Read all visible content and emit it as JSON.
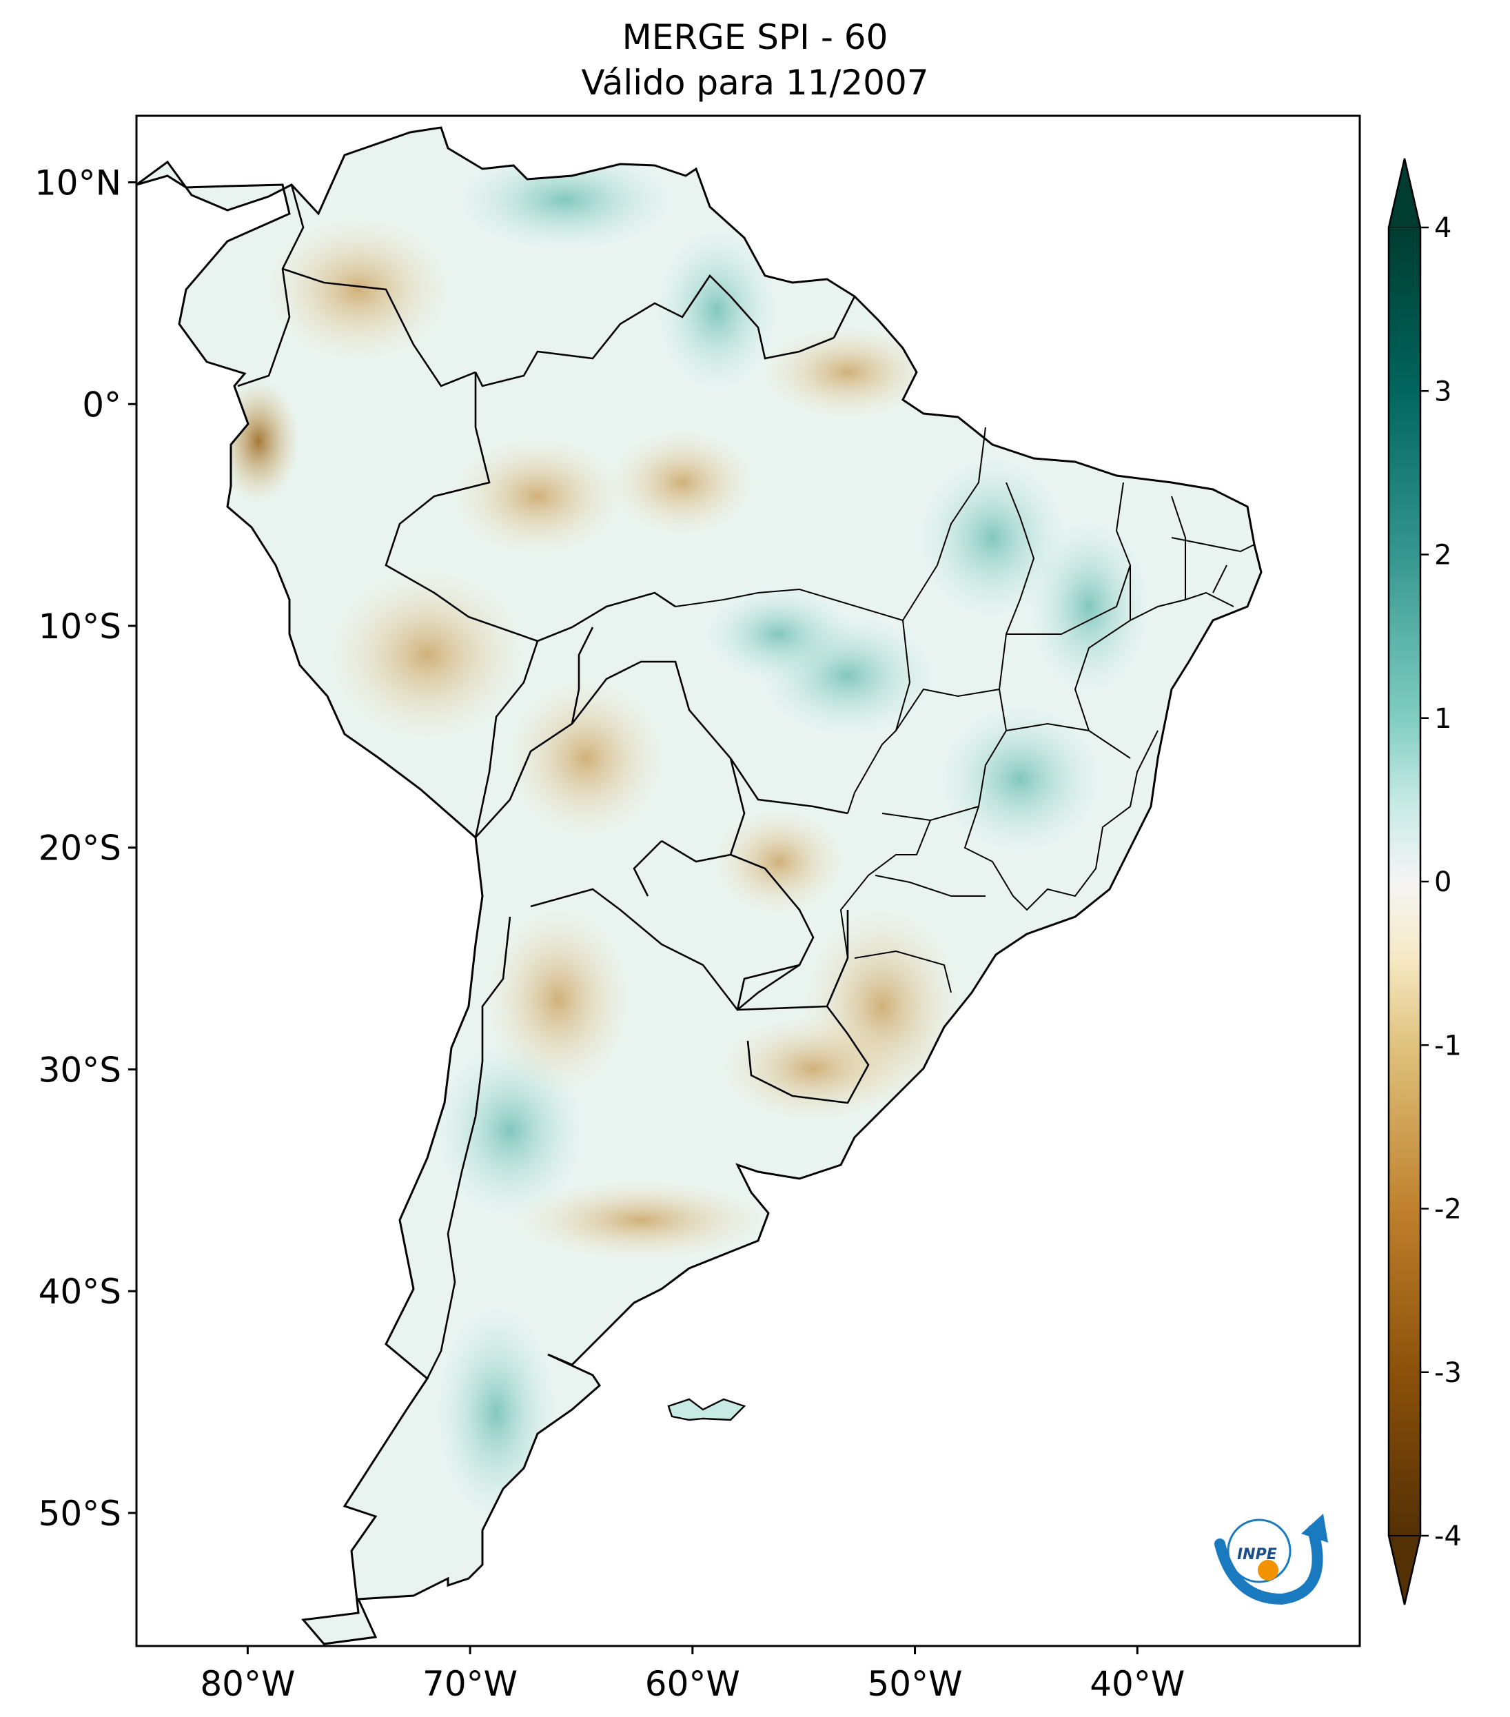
{
  "title": {
    "line1": "MERGE   SPI - 60",
    "line2": "Válido para 11/2007"
  },
  "map": {
    "lon_range": [
      -85,
      -30
    ],
    "lat_range": [
      -56,
      13
    ],
    "lat_ticks": [
      {
        "value": 10,
        "label": "10°N"
      },
      {
        "value": 0,
        "label": "0°"
      },
      {
        "value": -10,
        "label": "10°S"
      },
      {
        "value": -20,
        "label": "20°S"
      },
      {
        "value": -30,
        "label": "30°S"
      },
      {
        "value": -40,
        "label": "40°S"
      },
      {
        "value": -50,
        "label": "50°S"
      }
    ],
    "lon_ticks": [
      {
        "value": -80,
        "label": "80°W"
      },
      {
        "value": -70,
        "label": "70°W"
      },
      {
        "value": -60,
        "label": "60°W"
      },
      {
        "value": -50,
        "label": "50°W"
      },
      {
        "value": -40,
        "label": "40°W"
      }
    ]
  },
  "colorbar": {
    "min": -4,
    "max": 4,
    "extend": "both",
    "colormap": "BrBG",
    "ticks": [
      {
        "value": 4,
        "label": "4"
      },
      {
        "value": 3,
        "label": "3"
      },
      {
        "value": 2,
        "label": "2"
      },
      {
        "value": 1,
        "label": "1"
      },
      {
        "value": 0,
        "label": "0"
      },
      {
        "value": -1,
        "label": "-1"
      },
      {
        "value": -2,
        "label": "-2"
      },
      {
        "value": -3,
        "label": "-3"
      },
      {
        "value": -4,
        "label": "-4"
      }
    ],
    "colors": {
      "dry_extreme": "#543005",
      "dry": "#bf812d",
      "dry_light": "#f6e8c3",
      "neutral": "#f5f5f5",
      "wet_light": "#c7eae5",
      "wet": "#35978f",
      "wet_extreme": "#003c30"
    }
  },
  "logo": {
    "text": "INPE",
    "colors": {
      "blue": "#1a7abf",
      "orange": "#f39200"
    }
  }
}
